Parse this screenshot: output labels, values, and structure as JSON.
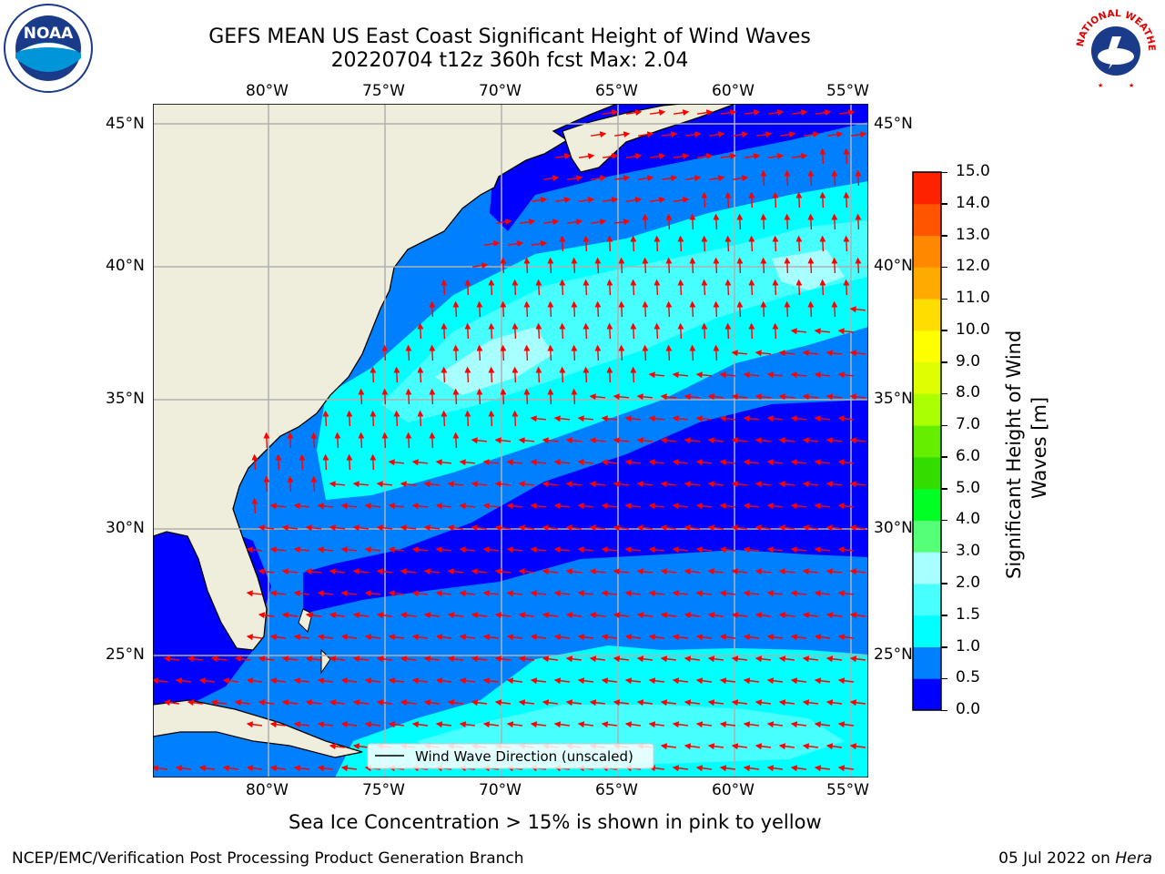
{
  "header": {
    "title_line1": "GEFS MEAN US East Coast Significant Height of Wind Waves",
    "title_line2": "20220704 t12z 360h fcst   Max: 2.04"
  },
  "logos": {
    "left": {
      "text": "NOAA",
      "ring_text": "NATIONAL OCEANIC AND ATMOSPHERIC ADMINISTRATION · U.S. DEPARTMENT OF COMMERCE"
    },
    "right": {
      "ring_text": "NATIONAL WEATHER SERVICE"
    }
  },
  "map": {
    "lon_labels": [
      "80°W",
      "75°W",
      "70°W",
      "65°W",
      "60°W",
      "55°W"
    ],
    "lat_labels": [
      "45°N",
      "40°N",
      "35°N",
      "30°N",
      "25°N"
    ],
    "legend_label": "Wind Wave Direction (unscaled)",
    "colors": {
      "land": "#efeddb",
      "coast": "#000000",
      "grid": "#b0b0b0",
      "arrow": "#ff0000",
      "band_0_05": "#0000ff",
      "band_05_10": "#0080ff",
      "band_10_15": "#00ffff",
      "band_15_20": "#48ffff",
      "band_20_30": "#a8ffff"
    }
  },
  "colorbar": {
    "title_line1": "Significant Height of Wind",
    "title_line2": "Waves [m]",
    "ticks": [
      "15.0",
      "14.0",
      "13.0",
      "12.0",
      "11.0",
      "10.0",
      "9.0",
      "8.0",
      "7.0",
      "6.0",
      "5.0",
      "4.0",
      "3.0",
      "2.0",
      "1.5",
      "1.0",
      "0.5",
      "0.0"
    ],
    "colors": [
      "#0000ff",
      "#0080ff",
      "#00ffff",
      "#48ffff",
      "#a8ffff",
      "#55ff77",
      "#00ff22",
      "#33dd00",
      "#66ee00",
      "#aaff00",
      "#ddff00",
      "#ffff00",
      "#ffdd00",
      "#ffaa00",
      "#ff8800",
      "#ff5500",
      "#ff2200"
    ]
  },
  "caption": "Sea Ice Concentration > 15% is shown in pink to yellow",
  "footer": {
    "left": "NCEP/EMC/Verification Post Processing Product Generation Branch",
    "right_date": "05 Jul 2022 on ",
    "right_host": "Hera"
  }
}
